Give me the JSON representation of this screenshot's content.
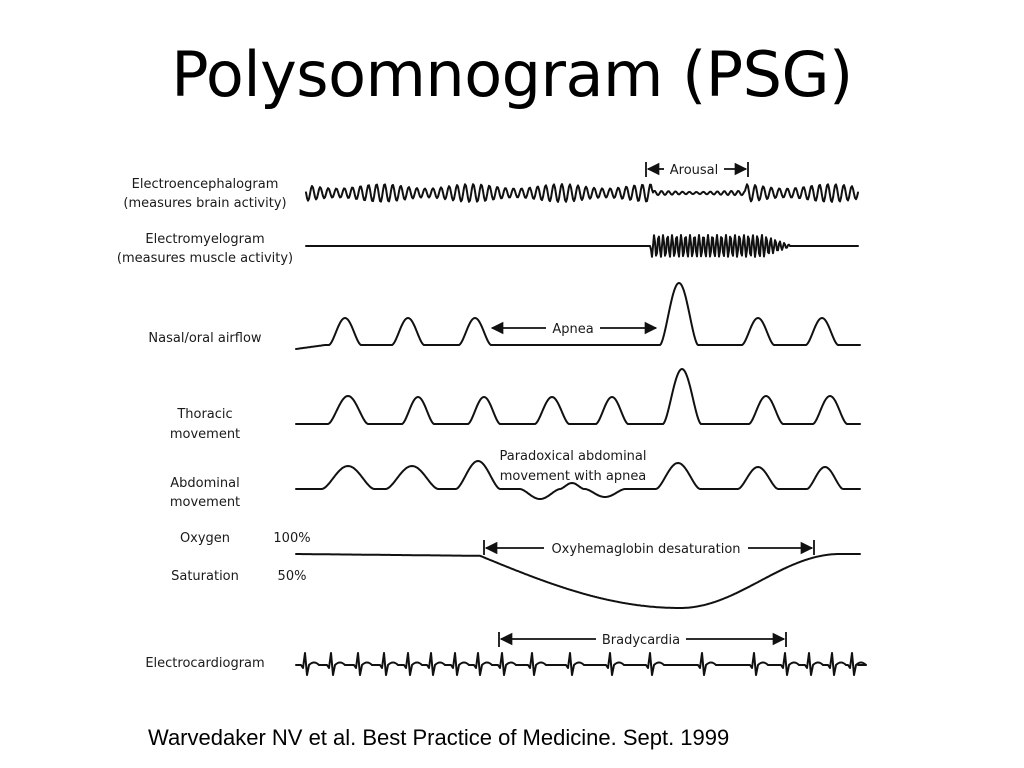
{
  "title": "Polysomnogram (PSG)",
  "citation": "Warvedaker NV et al. Best Practice of Medicine. Sept. 1999",
  "channels": {
    "eeg": {
      "name": "Electroencephalogram",
      "desc": "(measures brain activity)"
    },
    "emg": {
      "name": "Electromyelogram",
      "desc": "(measures muscle activity)"
    },
    "airflow": {
      "name": "Nasal/oral airflow"
    },
    "thoracic": {
      "line1": "Thoracic",
      "line2": "movement"
    },
    "abdominal": {
      "line1": "Abdominal",
      "line2": "movement"
    },
    "oxygen": {
      "line1": "Oxygen",
      "line2": "Saturation",
      "level_high": "100%",
      "level_low": "50%"
    },
    "ecg": {
      "name": "Electrocardiogram"
    }
  },
  "annotations": {
    "arousal": "Arousal",
    "apnea": "Apnea",
    "paradoxical_line1": "Paradoxical abdominal",
    "paradoxical_line2": "movement with apnea",
    "desaturation": "Oxyhemaglobin desaturation",
    "bradycardia": "Bradycardia"
  }
}
